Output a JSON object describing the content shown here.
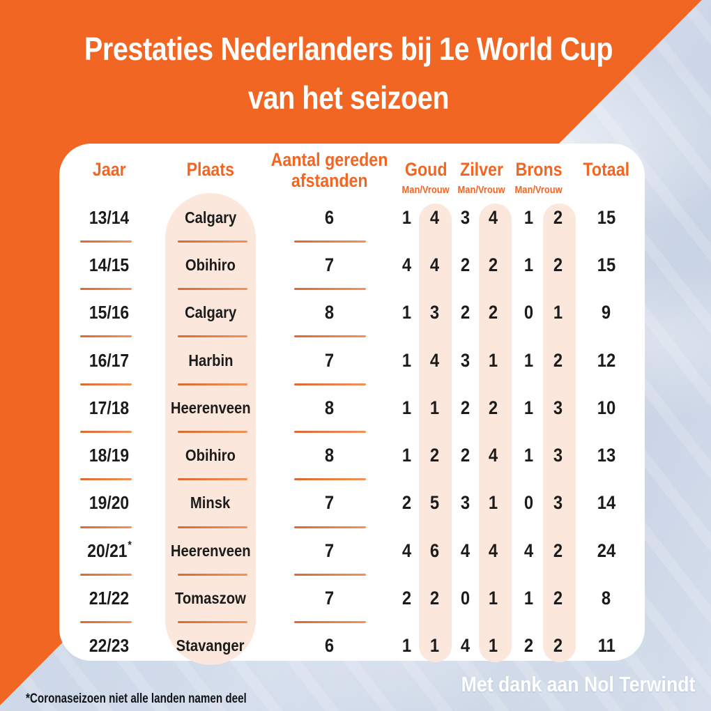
{
  "title": {
    "line1": "Prestaties Nederlanders bij 1e World Cup",
    "line2": "van het seizoen"
  },
  "table": {
    "headers": {
      "jaar": "Jaar",
      "plaats": "Plaats",
      "aantal_line1": "Aantal gereden",
      "aantal_line2": "afstanden",
      "goud": "Goud",
      "zilver": "Zilver",
      "brons": "Brons",
      "totaal": "Totaal",
      "man_vrouw": "Man/Vrouw"
    }
  },
  "chart_data": {
    "type": "table",
    "title": "Prestaties Nederlanders bij 1e World Cup van het seizoen",
    "columns": [
      "Jaar",
      "Plaats",
      "Aantal gereden afstanden",
      "Goud Man",
      "Goud Vrouw",
      "Zilver Man",
      "Zilver Vrouw",
      "Brons Man",
      "Brons Vrouw",
      "Totaal"
    ],
    "rows": [
      [
        "13/14",
        "Calgary",
        6,
        1,
        4,
        3,
        4,
        1,
        2,
        15
      ],
      [
        "14/15",
        "Obihiro",
        7,
        4,
        4,
        2,
        2,
        1,
        2,
        15
      ],
      [
        "15/16",
        "Calgary",
        8,
        1,
        3,
        2,
        2,
        0,
        1,
        9
      ],
      [
        "16/17",
        "Harbin",
        7,
        1,
        4,
        3,
        1,
        1,
        2,
        12
      ],
      [
        "17/18",
        "Heerenveen",
        8,
        1,
        1,
        2,
        2,
        1,
        3,
        10
      ],
      [
        "18/19",
        "Obihiro",
        8,
        1,
        2,
        2,
        4,
        1,
        3,
        13
      ],
      [
        "19/20",
        "Minsk",
        7,
        2,
        5,
        3,
        1,
        0,
        3,
        14
      ],
      [
        "20/21*",
        "Heerenveen",
        7,
        4,
        6,
        4,
        4,
        4,
        2,
        24
      ],
      [
        "21/22",
        "Tomaszow",
        7,
        2,
        2,
        0,
        1,
        1,
        2,
        8
      ],
      [
        "22/23",
        "Stavanger",
        6,
        1,
        1,
        4,
        1,
        2,
        2,
        11
      ]
    ],
    "footnote_marker_row": "20/21*"
  },
  "footer": {
    "footnote": "*Coronaseizoen niet alle landen namen deel",
    "credit": "Met dank aan Nol Terwindt"
  },
  "colors": {
    "orange": "#f26623",
    "pill_peach": "#fbe7db",
    "photo_blue": "#cdd8e8",
    "card_white": "#ffffff",
    "text_dark": "#1b1b1b",
    "separator_orange": "#e0703a"
  }
}
